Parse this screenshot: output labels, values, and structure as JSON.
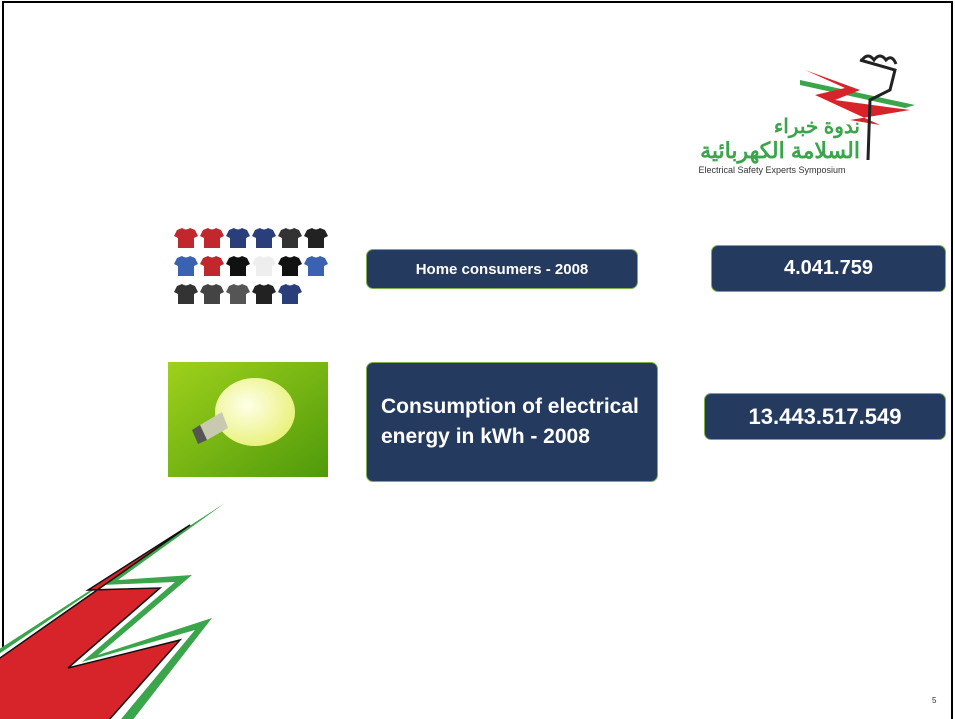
{
  "logo": {
    "arabic_line1": "ندوة خبراء",
    "arabic_line2": "السلامة الكهربائية",
    "english": "Electrical Safety Experts Symposium"
  },
  "rows": [
    {
      "label": "Home consumers - 2008",
      "value": "4.041.759"
    },
    {
      "label": "Consumption of electrical energy in kWh - 2008",
      "value": "13.443.517.549"
    }
  ],
  "page_number": "5"
}
